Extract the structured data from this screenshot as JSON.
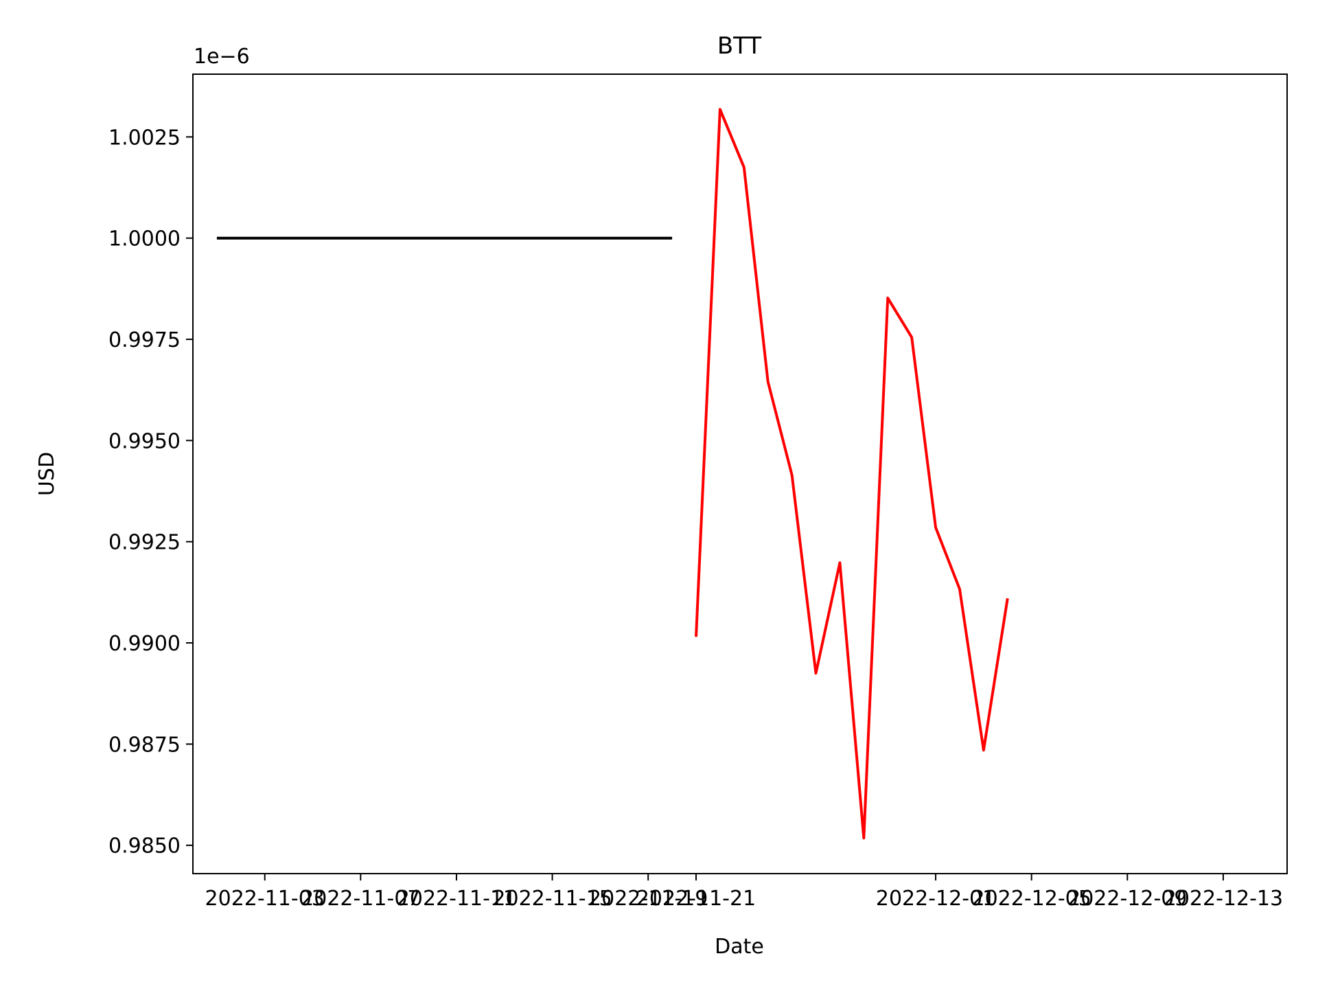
{
  "chart_data": {
    "type": "line",
    "title": "BTT",
    "xlabel": "Date",
    "ylabel": "USD",
    "y_offset_label": "1e−6",
    "y_multiplier": 1e-06,
    "grid": false,
    "legend": "none",
    "xlim": [
      "2022-10-31T00:00:00",
      "2022-12-15T16:00:00"
    ],
    "ylim": [
      0.9843,
      1.00405
    ],
    "x_ticks": [
      {
        "date": "2022-11-03",
        "label": "2022-11-03"
      },
      {
        "date": "2022-11-07",
        "label": "2022-11-07"
      },
      {
        "date": "2022-11-11",
        "label": "2022-11-11"
      },
      {
        "date": "2022-11-15",
        "label": "2022-11-15"
      },
      {
        "date": "2022-11-19",
        "label": "2022-11-19"
      },
      {
        "date": "2022-11-21",
        "label": "2022-11-21"
      },
      {
        "date": "2022-12-01",
        "label": "2022-12-01"
      },
      {
        "date": "2022-12-05",
        "label": "2022-12-05"
      },
      {
        "date": "2022-12-09",
        "label": "2022-12-09"
      },
      {
        "date": "2022-12-13",
        "label": "2022-12-13"
      }
    ],
    "y_ticks": [
      {
        "value": 0.985,
        "label": "0.9850"
      },
      {
        "value": 0.9875,
        "label": "0.9875"
      },
      {
        "value": 0.99,
        "label": "0.9900"
      },
      {
        "value": 0.9925,
        "label": "0.9925"
      },
      {
        "value": 0.995,
        "label": "0.9950"
      },
      {
        "value": 0.9975,
        "label": "0.9975"
      },
      {
        "value": 1.0,
        "label": "1.0000"
      },
      {
        "value": 1.0025,
        "label": "1.0025"
      }
    ],
    "series": [
      {
        "color": "#000000",
        "x": [
          "2022-11-01",
          "2022-11-20"
        ],
        "y": [
          1.0,
          1.0
        ]
      },
      {
        "color": "#ff0000",
        "x": [
          "2022-11-21",
          "2022-11-22",
          "2022-11-23",
          "2022-11-24",
          "2022-11-25",
          "2022-11-26",
          "2022-11-27",
          "2022-11-28",
          "2022-11-29",
          "2022-11-30",
          "2022-12-01",
          "2022-12-02",
          "2022-12-03",
          "2022-12-04"
        ],
        "y": [
          0.99015,
          1.00318,
          1.00175,
          0.99645,
          0.99415,
          0.98925,
          0.99198,
          0.98518,
          0.99852,
          0.99755,
          0.99285,
          0.99133,
          0.98735,
          0.9911
        ]
      }
    ]
  }
}
